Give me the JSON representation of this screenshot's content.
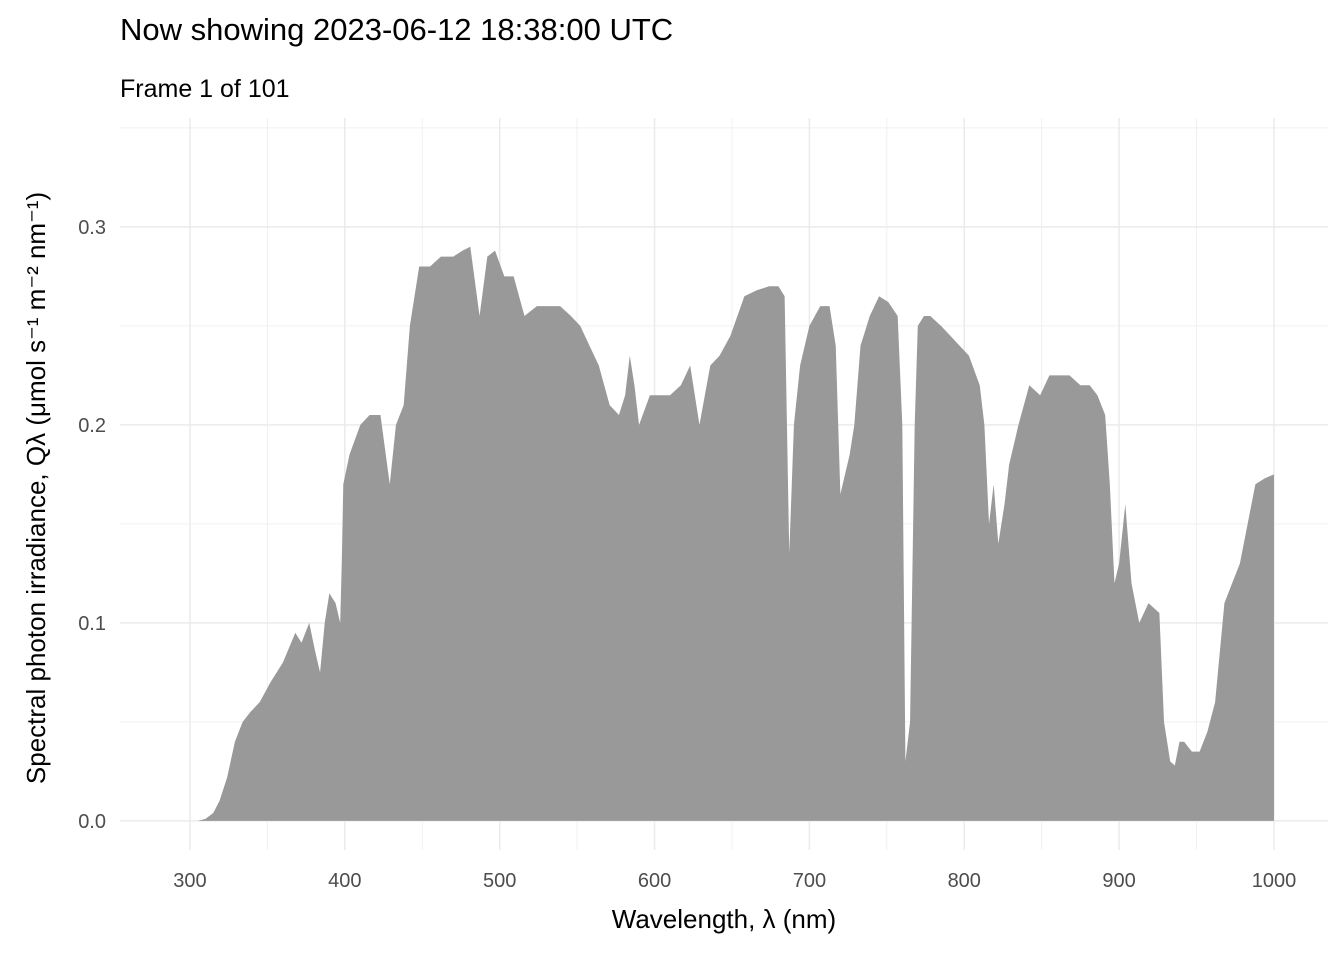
{
  "chart_data": {
    "type": "area",
    "title": "Now showing 2023-06-12 18:38:00 UTC",
    "subtitle": "Frame 1 of 101",
    "x_label": "Wavelength,  λ (nm)",
    "y_label": "Spectral photon irradiance,  Qλ (μmol s⁻¹ m⁻² nm⁻¹)",
    "color": "#999999",
    "grid": true,
    "xlim": [
      254.8,
      1034.9
    ],
    "ylim": [
      -0.0147,
      0.355
    ],
    "xticks": [
      300,
      400,
      500,
      600,
      700,
      800,
      900,
      1000
    ],
    "x_minor_ticks": [
      350,
      450,
      550,
      650,
      750,
      850,
      950
    ],
    "yticks": [
      {
        "value": 0,
        "label": "0.0"
      },
      0.1,
      0.2,
      0.3
    ],
    "y_minor_ticks": [
      0.05,
      0.15,
      0.25,
      0.35
    ],
    "x": [
      300,
      305,
      310,
      315,
      319,
      324,
      329,
      334,
      339,
      345,
      352,
      360,
      368,
      372,
      377,
      381,
      384,
      387,
      390,
      394,
      397,
      398,
      399,
      403,
      410,
      416,
      423,
      429,
      433,
      438,
      442,
      448,
      455,
      462,
      470,
      476,
      481,
      487,
      492,
      497,
      503,
      509,
      516,
      524,
      532,
      539,
      546,
      552,
      558,
      564,
      571,
      577,
      581,
      584,
      587,
      590,
      597,
      604,
      610,
      617,
      623,
      629,
      636,
      642,
      649,
      658,
      666,
      674,
      680,
      684,
      687,
      690,
      694,
      700,
      707,
      713,
      717,
      720,
      723,
      726,
      729,
      733,
      739,
      745,
      751,
      757,
      760,
      762,
      765,
      768,
      770,
      774,
      778,
      785,
      791,
      797,
      803,
      810,
      813,
      816,
      819,
      822,
      826,
      829,
      835,
      842,
      849,
      855,
      862,
      868,
      875,
      881,
      886,
      891,
      894,
      897,
      900,
      904,
      908,
      913,
      919,
      926,
      929,
      933,
      936,
      939,
      942,
      947,
      952,
      957,
      962,
      968,
      973,
      978,
      983,
      988,
      994,
      1000
    ],
    "values": [
      0,
      0,
      0.001,
      0.004,
      0.01,
      0.022,
      0.04,
      0.05,
      0.055,
      0.06,
      0.07,
      0.08,
      0.095,
      0.09,
      0.1,
      0.085,
      0.075,
      0.1,
      0.115,
      0.11,
      0.1,
      0.13,
      0.17,
      0.185,
      0.2,
      0.205,
      0.205,
      0.17,
      0.2,
      0.21,
      0.25,
      0.28,
      0.28,
      0.285,
      0.285,
      0.288,
      0.29,
      0.255,
      0.285,
      0.288,
      0.275,
      0.275,
      0.255,
      0.26,
      0.26,
      0.26,
      0.255,
      0.25,
      0.24,
      0.23,
      0.21,
      0.205,
      0.215,
      0.235,
      0.22,
      0.2,
      0.215,
      0.215,
      0.215,
      0.22,
      0.23,
      0.2,
      0.23,
      0.235,
      0.245,
      0.265,
      0.268,
      0.27,
      0.27,
      0.265,
      0.135,
      0.2,
      0.23,
      0.25,
      0.26,
      0.26,
      0.24,
      0.165,
      0.175,
      0.185,
      0.2,
      0.24,
      0.255,
      0.265,
      0.262,
      0.255,
      0.2,
      0.03,
      0.05,
      0.2,
      0.25,
      0.255,
      0.255,
      0.25,
      0.245,
      0.24,
      0.235,
      0.22,
      0.2,
      0.15,
      0.17,
      0.14,
      0.16,
      0.18,
      0.2,
      0.22,
      0.215,
      0.225,
      0.225,
      0.225,
      0.22,
      0.22,
      0.215,
      0.205,
      0.17,
      0.12,
      0.13,
      0.16,
      0.12,
      0.1,
      0.11,
      0.105,
      0.05,
      0.03,
      0.028,
      0.04,
      0.04,
      0.035,
      0.035,
      0.045,
      0.06,
      0.11,
      0.12,
      0.13,
      0.15,
      0.17,
      0.173,
      0.175
    ]
  }
}
